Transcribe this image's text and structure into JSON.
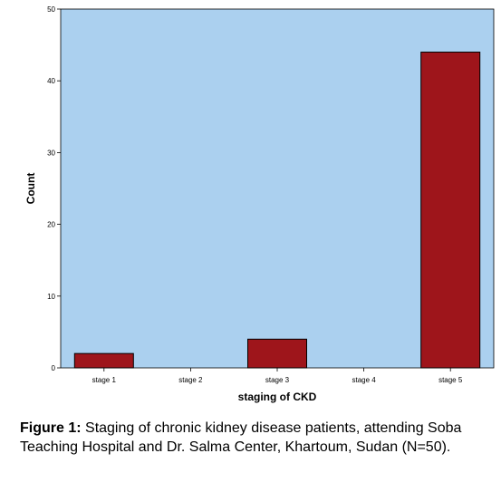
{
  "chart_data": {
    "type": "bar",
    "categories": [
      "stage 1",
      "stage 2",
      "stage 3",
      "stage 4",
      "stage 5"
    ],
    "values": [
      2,
      0,
      4,
      0,
      44
    ],
    "title": "",
    "xlabel": "staging of CKD",
    "ylabel": "Count",
    "ylim": [
      0,
      50
    ],
    "yticks": [
      0,
      10,
      20,
      30,
      40,
      50
    ],
    "grid": false,
    "legend": "none",
    "colors": {
      "plot_background": "#abd0ef",
      "bar_fill": "#9e151b",
      "bar_stroke": "#000000"
    }
  },
  "caption": {
    "prefix": "Figure 1:",
    "text": "Staging of chronic kidney disease patients, attending Soba Teaching Hospital and Dr. Salma Center, Khartoum, Sudan (N=50)."
  }
}
